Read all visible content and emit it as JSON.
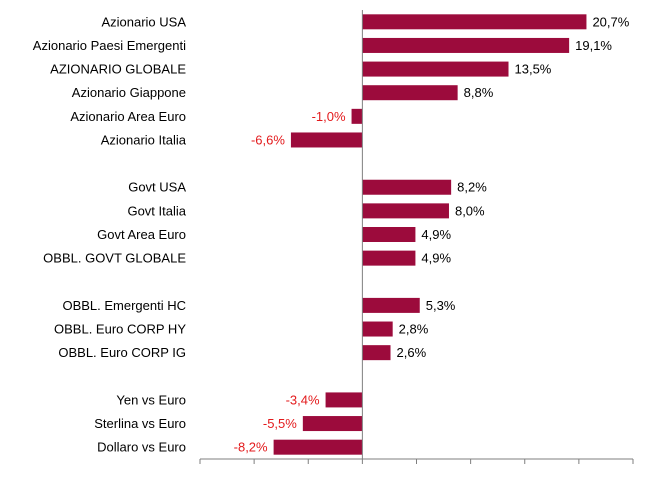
{
  "chart_data": {
    "type": "bar",
    "orientation": "horizontal",
    "title": "",
    "xlabel": "",
    "ylabel": "",
    "xlim": [
      -15,
      25
    ],
    "grid": false,
    "legend": "none",
    "colors": {
      "bar": "#9c0b3c",
      "positive_label": "#000000",
      "negative_label": "#e31a1c",
      "axis": "#7f7f7f"
    },
    "categories": [
      "Azionario USA",
      "Azionario Paesi Emergenti",
      "AZIONARIO GLOBALE",
      "Azionario Giappone",
      "Azionario Area Euro",
      "Azionario Italia",
      "",
      "Govt USA",
      "Govt Italia",
      "Govt Area Euro",
      "OBBL. GOVT GLOBALE",
      "",
      "OBBL. Emergenti HC",
      "OBBL. Euro CORP HY",
      "OBBL. Euro CORP IG",
      "",
      "Yen vs Euro",
      "Sterlina vs Euro",
      "Dollaro vs Euro"
    ],
    "values": [
      20.7,
      19.1,
      13.5,
      8.8,
      -1.0,
      -6.6,
      null,
      8.2,
      8.0,
      4.9,
      4.9,
      null,
      5.3,
      2.8,
      2.6,
      null,
      -3.4,
      -5.5,
      -8.2
    ],
    "labels": [
      "20,7%",
      "19,1%",
      "13,5%",
      "8,8%",
      "-1,0%",
      "-6,6%",
      "",
      "8,2%",
      "8,0%",
      "4,9%",
      "4,9%",
      "",
      "5,3%",
      "2,8%",
      "2,6%",
      "",
      "-3,4%",
      "-5,5%",
      "-8,2%"
    ]
  }
}
